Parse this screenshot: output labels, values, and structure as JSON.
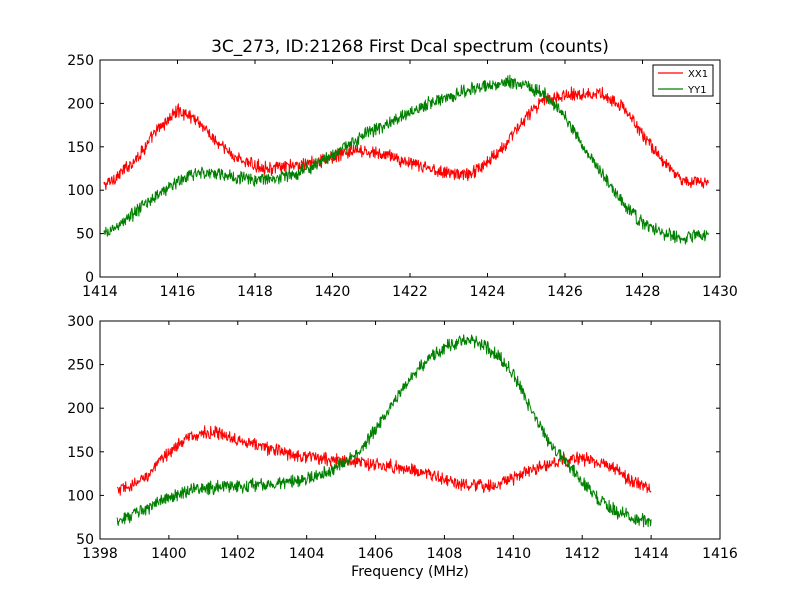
{
  "chart_data": [
    {
      "type": "line",
      "title": "3C_273, ID:21268 First Dcal spectrum (counts)",
      "xlabel": "",
      "ylabel": "",
      "xlim": [
        1414,
        1430
      ],
      "ylim": [
        0,
        250
      ],
      "xticks": [
        1414,
        1416,
        1418,
        1420,
        1422,
        1424,
        1426,
        1428,
        1430
      ],
      "yticks": [
        0,
        50,
        100,
        150,
        200,
        250
      ],
      "grid": false,
      "legend": "top-right",
      "series": [
        {
          "name": "XX1",
          "color": "#ff0000",
          "x": [
            1414.1,
            1414.5,
            1415.0,
            1415.5,
            1416.0,
            1416.5,
            1417.0,
            1417.5,
            1418.0,
            1418.5,
            1419.0,
            1419.5,
            1420.0,
            1420.5,
            1421.0,
            1421.5,
            1422.0,
            1422.5,
            1423.0,
            1423.5,
            1424.0,
            1424.5,
            1425.0,
            1425.5,
            1426.0,
            1426.5,
            1427.0,
            1427.5,
            1428.0,
            1428.5,
            1429.0,
            1429.7
          ],
          "values": [
            105,
            118,
            140,
            170,
            192,
            182,
            155,
            138,
            128,
            125,
            128,
            132,
            138,
            145,
            143,
            140,
            130,
            125,
            120,
            118,
            132,
            155,
            185,
            205,
            210,
            212,
            210,
            195,
            165,
            135,
            112,
            108
          ]
        },
        {
          "name": "YY1",
          "color": "#008000",
          "x": [
            1414.1,
            1414.5,
            1415.0,
            1415.5,
            1416.0,
            1416.5,
            1417.0,
            1417.5,
            1418.0,
            1418.5,
            1419.0,
            1419.5,
            1420.0,
            1420.5,
            1421.0,
            1421.5,
            1422.0,
            1422.5,
            1423.0,
            1423.5,
            1424.0,
            1424.5,
            1425.0,
            1425.5,
            1426.0,
            1426.5,
            1427.0,
            1427.5,
            1428.0,
            1428.5,
            1429.0,
            1429.7
          ],
          "values": [
            48,
            60,
            78,
            95,
            110,
            120,
            120,
            115,
            112,
            114,
            118,
            128,
            140,
            155,
            168,
            178,
            190,
            200,
            208,
            215,
            220,
            225,
            222,
            210,
            185,
            150,
            115,
            85,
            62,
            50,
            45,
            50
          ]
        }
      ]
    },
    {
      "type": "line",
      "title": "",
      "xlabel": "Frequency (MHz)",
      "ylabel": "",
      "xlim": [
        1398,
        1416
      ],
      "ylim": [
        50,
        300
      ],
      "xticks": [
        1398,
        1400,
        1402,
        1404,
        1406,
        1408,
        1410,
        1412,
        1414,
        1416
      ],
      "yticks": [
        50,
        100,
        150,
        200,
        250,
        300
      ],
      "grid": false,
      "series": [
        {
          "name": "XX1",
          "color": "#ff0000",
          "x": [
            1398.5,
            1399.0,
            1399.5,
            1400.0,
            1400.5,
            1401.0,
            1401.5,
            1402.0,
            1402.5,
            1403.0,
            1403.5,
            1404.0,
            1404.5,
            1405.0,
            1405.5,
            1406.0,
            1406.5,
            1407.0,
            1407.5,
            1408.0,
            1408.5,
            1409.0,
            1409.5,
            1410.0,
            1410.5,
            1411.0,
            1411.5,
            1412.0,
            1412.5,
            1413.0,
            1413.5,
            1414.0
          ],
          "values": [
            105,
            112,
            128,
            150,
            165,
            172,
            170,
            165,
            158,
            153,
            148,
            145,
            142,
            140,
            138,
            135,
            133,
            130,
            125,
            118,
            112,
            110,
            112,
            120,
            128,
            135,
            140,
            143,
            138,
            128,
            115,
            108
          ]
        },
        {
          "name": "YY1",
          "color": "#008000",
          "x": [
            1398.5,
            1399.0,
            1399.5,
            1400.0,
            1400.5,
            1401.0,
            1401.5,
            1402.0,
            1402.5,
            1403.0,
            1403.5,
            1404.0,
            1404.5,
            1405.0,
            1405.5,
            1406.0,
            1406.5,
            1407.0,
            1407.5,
            1408.0,
            1408.5,
            1409.0,
            1409.5,
            1410.0,
            1410.5,
            1411.0,
            1411.5,
            1412.0,
            1412.5,
            1413.0,
            1413.5,
            1414.0
          ],
          "values": [
            72,
            78,
            88,
            98,
            105,
            108,
            110,
            111,
            112,
            113,
            115,
            118,
            125,
            135,
            150,
            175,
            205,
            235,
            255,
            270,
            278,
            275,
            262,
            240,
            200,
            165,
            140,
            115,
            95,
            82,
            74,
            70
          ]
        }
      ]
    }
  ]
}
